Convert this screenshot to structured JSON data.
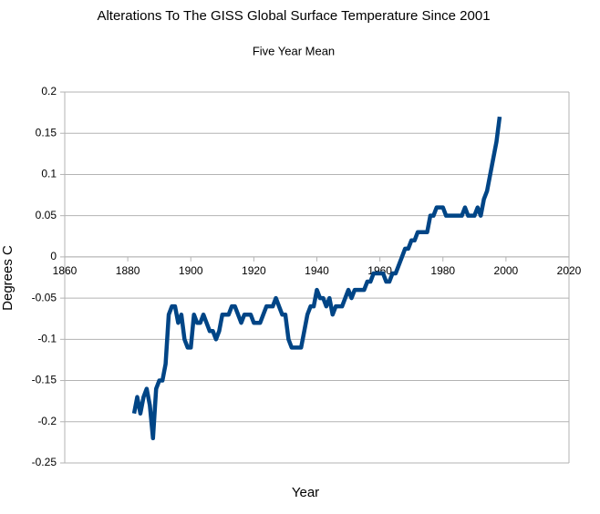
{
  "chart_data": {
    "type": "line",
    "title": "Alterations To The GISS Global Surface Temperature  Since 2001",
    "subtitle": "Five Year Mean",
    "x_label": "Year",
    "y_label": "Degrees C",
    "xlim": [
      1860,
      2020
    ],
    "xticks": [
      1860,
      1880,
      1900,
      1920,
      1940,
      1960,
      1980,
      2000,
      2020
    ],
    "ylim": [
      -0.25,
      0.2
    ],
    "yticks": [
      0.2,
      0.15,
      0.1,
      0.05,
      0,
      -0.05,
      -0.1,
      -0.15,
      -0.2,
      -0.25
    ],
    "grid": true,
    "x": [
      1882,
      1883,
      1884,
      1885,
      1886,
      1887,
      1888,
      1889,
      1890,
      1891,
      1892,
      1893,
      1894,
      1895,
      1896,
      1897,
      1898,
      1899,
      1900,
      1901,
      1902,
      1903,
      1904,
      1905,
      1906,
      1907,
      1908,
      1909,
      1910,
      1911,
      1912,
      1913,
      1914,
      1915,
      1916,
      1917,
      1918,
      1919,
      1920,
      1921,
      1922,
      1923,
      1924,
      1925,
      1926,
      1927,
      1928,
      1929,
      1930,
      1931,
      1932,
      1933,
      1934,
      1935,
      1936,
      1937,
      1938,
      1939,
      1940,
      1941,
      1942,
      1943,
      1944,
      1945,
      1946,
      1947,
      1948,
      1949,
      1950,
      1951,
      1952,
      1953,
      1954,
      1955,
      1956,
      1957,
      1958,
      1959,
      1960,
      1961,
      1962,
      1963,
      1964,
      1965,
      1966,
      1967,
      1968,
      1969,
      1970,
      1971,
      1972,
      1973,
      1974,
      1975,
      1976,
      1977,
      1978,
      1979,
      1980,
      1981,
      1982,
      1983,
      1984,
      1985,
      1986,
      1987,
      1988,
      1989,
      1990,
      1991,
      1992,
      1993,
      1994,
      1995,
      1996,
      1997,
      1998
    ],
    "series": [
      {
        "color": "#004586",
        "values": [
          -0.19,
          -0.17,
          -0.19,
          -0.17,
          -0.16,
          -0.18,
          -0.22,
          -0.16,
          -0.15,
          -0.15,
          -0.13,
          -0.07,
          -0.06,
          -0.06,
          -0.08,
          -0.07,
          -0.1,
          -0.11,
          -0.11,
          -0.07,
          -0.08,
          -0.08,
          -0.07,
          -0.08,
          -0.09,
          -0.09,
          -0.1,
          -0.09,
          -0.07,
          -0.07,
          -0.07,
          -0.06,
          -0.06,
          -0.07,
          -0.08,
          -0.07,
          -0.07,
          -0.07,
          -0.08,
          -0.08,
          -0.08,
          -0.07,
          -0.06,
          -0.06,
          -0.06,
          -0.05,
          -0.06,
          -0.07,
          -0.07,
          -0.1,
          -0.11,
          -0.11,
          -0.11,
          -0.11,
          -0.09,
          -0.07,
          -0.06,
          -0.06,
          -0.04,
          -0.05,
          -0.05,
          -0.06,
          -0.05,
          -0.07,
          -0.06,
          -0.06,
          -0.06,
          -0.05,
          -0.04,
          -0.05,
          -0.04,
          -0.04,
          -0.04,
          -0.04,
          -0.03,
          -0.03,
          -0.02,
          -0.02,
          -0.02,
          -0.02,
          -0.03,
          -0.03,
          -0.02,
          -0.02,
          -0.01,
          0,
          0.01,
          0.01,
          0.02,
          0.02,
          0.03,
          0.03,
          0.03,
          0.03,
          0.05,
          0.05,
          0.06,
          0.06,
          0.06,
          0.05,
          0.05,
          0.05,
          0.05,
          0.05,
          0.05,
          0.06,
          0.05,
          0.05,
          0.05,
          0.06,
          0.05,
          0.07,
          0.08,
          0.1,
          0.12,
          0.14,
          0.17
        ]
      }
    ]
  }
}
